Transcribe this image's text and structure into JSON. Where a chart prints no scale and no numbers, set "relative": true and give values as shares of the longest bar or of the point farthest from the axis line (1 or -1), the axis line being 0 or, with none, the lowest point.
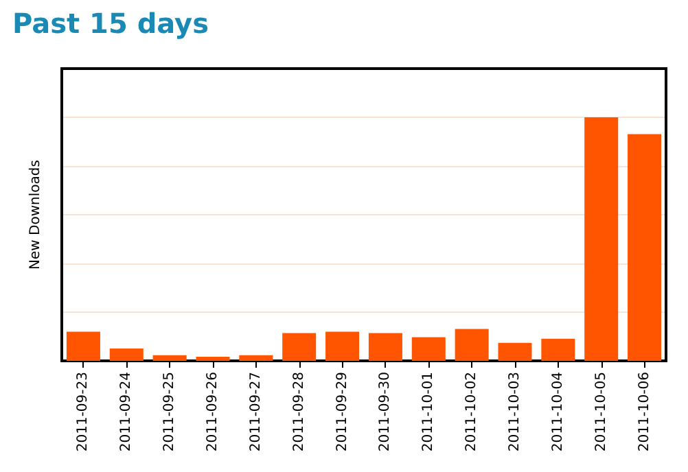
{
  "chart_data": {
    "type": "bar",
    "title": "Past 15 days",
    "ylabel": "New Downloads",
    "categories": [
      "2011-09-23",
      "2011-09-24",
      "2011-09-25",
      "2011-09-26",
      "2011-09-27",
      "2011-09-28",
      "2011-09-29",
      "2011-09-30",
      "2011-10-01",
      "2011-10-02",
      "2011-10-03",
      "2011-10-04",
      "2011-10-05",
      "2011-10-06"
    ],
    "values": [
      0.12,
      0.051,
      0.023,
      0.017,
      0.023,
      0.114,
      0.12,
      0.114,
      0.097,
      0.131,
      0.074,
      0.091,
      1,
      0.931
    ],
    "color": "#ff5500",
    "relative": true,
    "grid": "y"
  }
}
